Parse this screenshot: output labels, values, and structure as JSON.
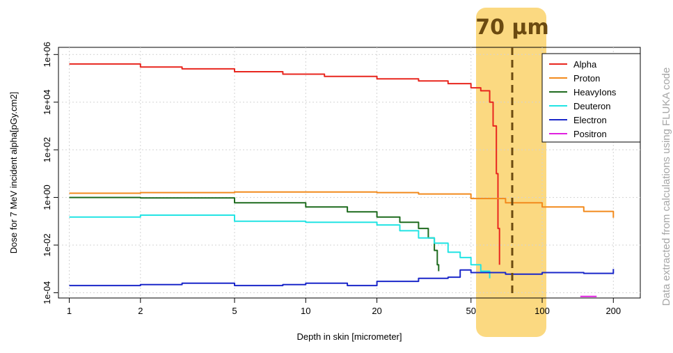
{
  "chart_data": {
    "type": "line",
    "xlabel": "Depth in skin [micrometer]",
    "ylabel": "Dose for 7 MeV incident alpha[pGy.cm2]",
    "x_scale": "log",
    "y_scale": "log",
    "xlim": [
      0.9,
      260
    ],
    "ylim": [
      6e-05,
      2000000
    ],
    "x_ticks": [
      1,
      2,
      5,
      10,
      20,
      50,
      100,
      200
    ],
    "x_tick_labels": [
      "1",
      "2",
      "5",
      "10",
      "20",
      "50",
      "100",
      "200"
    ],
    "y_ticks": [
      0.0001,
      0.01,
      1,
      100,
      10000,
      1000000
    ],
    "y_tick_labels": [
      "1e-04",
      "1e-02",
      "1e+00",
      "1e+02",
      "1e+04",
      "1e+06"
    ],
    "grid": true,
    "legend_position": "top-right",
    "series": [
      {
        "name": "Alpha",
        "color": "#e8261e",
        "x": [
          1,
          2,
          3,
          5,
          8,
          12,
          20,
          30,
          40,
          50,
          55,
          60,
          62,
          64,
          65,
          66
        ],
        "y": [
          400000,
          300000,
          250000,
          190000,
          150000,
          120000,
          95000,
          78000,
          60000,
          40000,
          30000,
          10000,
          1000,
          10,
          0.05,
          0.0015
        ]
      },
      {
        "name": "Proton",
        "color": "#f28a1c",
        "x": [
          1,
          2,
          5,
          10,
          20,
          30,
          50,
          70,
          100,
          150,
          200
        ],
        "y": [
          1.5,
          1.6,
          1.7,
          1.7,
          1.6,
          1.4,
          0.9,
          0.6,
          0.4,
          0.26,
          0.14
        ]
      },
      {
        "name": "HeavyIons",
        "color": "#1e6b1e",
        "x": [
          1,
          2,
          5,
          10,
          15,
          20,
          25,
          30,
          33,
          35,
          36,
          36.5
        ],
        "y": [
          1.0,
          0.95,
          0.6,
          0.4,
          0.25,
          0.15,
          0.09,
          0.05,
          0.02,
          0.006,
          0.0015,
          0.0008
        ]
      },
      {
        "name": "Deuteron",
        "color": "#22e4e4",
        "x": [
          1,
          2,
          5,
          10,
          20,
          25,
          30,
          35,
          40,
          45,
          50,
          55,
          60
        ],
        "y": [
          0.15,
          0.18,
          0.1,
          0.09,
          0.07,
          0.04,
          0.02,
          0.012,
          0.005,
          0.003,
          0.0015,
          0.0008,
          0.0004
        ]
      },
      {
        "name": "Electron",
        "color": "#1a27c9",
        "x": [
          1,
          2,
          3,
          5,
          8,
          10,
          15,
          20,
          30,
          40,
          45,
          50,
          70,
          100,
          150,
          200
        ],
        "y": [
          0.0002,
          0.00022,
          0.00025,
          0.0002,
          0.00022,
          0.00025,
          0.0002,
          0.0003,
          0.0004,
          0.00045,
          0.0009,
          0.0007,
          0.0006,
          0.0007,
          0.00065,
          0.001
        ]
      },
      {
        "name": "Positron",
        "color": "#e020e0",
        "x": [
          145,
          150,
          165,
          170
        ],
        "y": [
          7e-05,
          7e-05,
          7e-05,
          7e-05
        ]
      }
    ],
    "annotations": [
      {
        "text": "70 µm",
        "x": 70,
        "highlight_range": [
          50,
          97
        ],
        "highlight_color": "#fbd77a",
        "line_style": "dashed",
        "line_color": "#6b4a10",
        "text_color": "#6b4a10"
      }
    ]
  },
  "source_note": "Data extracted from calculations using FLUKA code"
}
